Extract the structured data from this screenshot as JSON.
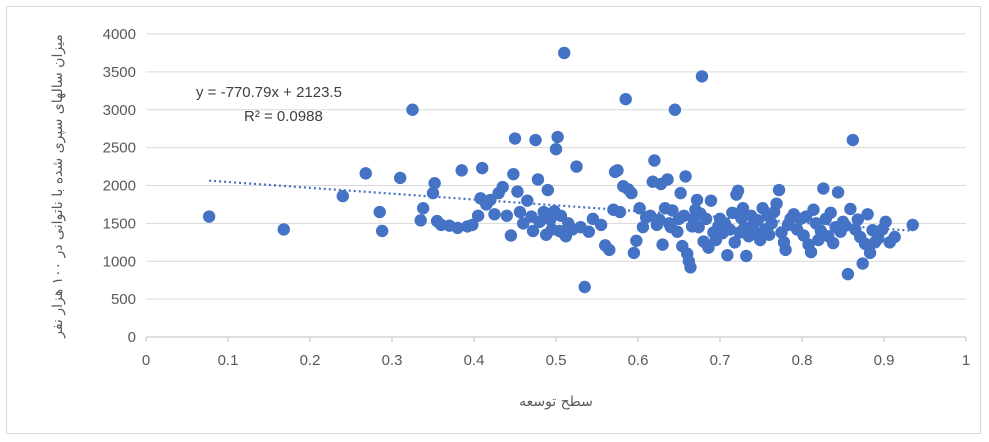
{
  "chart_data": {
    "type": "scatter",
    "title": "",
    "xlabel": "سطح توسعه",
    "ylabel": "میزان سالهای سپری شده با ناتوانی در ۱۰۰ هزار نفر",
    "xlim": [
      0,
      1
    ],
    "ylim": [
      0,
      4000
    ],
    "x_ticks": [
      "0",
      "0.1",
      "0.2",
      "0.3",
      "0.4",
      "0.5",
      "0.6",
      "0.7",
      "0.8",
      "0.9",
      "1"
    ],
    "y_ticks": [
      "0",
      "500",
      "1000",
      "1500",
      "2000",
      "2500",
      "3000",
      "3500",
      "4000"
    ],
    "grid": "horizontal",
    "marker_color": "#4472c4",
    "trendline": {
      "type": "linear",
      "slope": -770.79,
      "intercept": 2123.5,
      "x_range": [
        0.077,
        0.935
      ],
      "equation": "y = -770.79x + 2123.5",
      "r_squared": "R² = 0.0988",
      "color": "#4472c4",
      "style": "dotted"
    },
    "points": [
      [
        0.077,
        1590
      ],
      [
        0.168,
        1420
      ],
      [
        0.24,
        1860
      ],
      [
        0.268,
        2160
      ],
      [
        0.285,
        1650
      ],
      [
        0.288,
        1400
      ],
      [
        0.31,
        2100
      ],
      [
        0.325,
        3000
      ],
      [
        0.335,
        1540
      ],
      [
        0.338,
        1700
      ],
      [
        0.35,
        1900
      ],
      [
        0.352,
        2030
      ],
      [
        0.355,
        1530
      ],
      [
        0.36,
        1480
      ],
      [
        0.37,
        1470
      ],
      [
        0.38,
        1440
      ],
      [
        0.385,
        2200
      ],
      [
        0.392,
        1460
      ],
      [
        0.398,
        1480
      ],
      [
        0.405,
        1600
      ],
      [
        0.408,
        1830
      ],
      [
        0.41,
        2230
      ],
      [
        0.415,
        1750
      ],
      [
        0.42,
        1810
      ],
      [
        0.425,
        1620
      ],
      [
        0.43,
        1900
      ],
      [
        0.435,
        1980
      ],
      [
        0.44,
        1600
      ],
      [
        0.445,
        1340
      ],
      [
        0.448,
        2150
      ],
      [
        0.45,
        2620
      ],
      [
        0.453,
        1920
      ],
      [
        0.456,
        1650
      ],
      [
        0.46,
        1500
      ],
      [
        0.465,
        1800
      ],
      [
        0.47,
        1590
      ],
      [
        0.472,
        1400
      ],
      [
        0.475,
        2600
      ],
      [
        0.478,
        2080
      ],
      [
        0.48,
        1520
      ],
      [
        0.485,
        1650
      ],
      [
        0.488,
        1350
      ],
      [
        0.49,
        1940
      ],
      [
        0.493,
        1550
      ],
      [
        0.495,
        1420
      ],
      [
        0.498,
        1660
      ],
      [
        0.5,
        2480
      ],
      [
        0.502,
        2640
      ],
      [
        0.504,
        1400
      ],
      [
        0.506,
        1600
      ],
      [
        0.508,
        1380
      ],
      [
        0.51,
        3750
      ],
      [
        0.512,
        1330
      ],
      [
        0.515,
        1500
      ],
      [
        0.52,
        1420
      ],
      [
        0.525,
        2250
      ],
      [
        0.53,
        1450
      ],
      [
        0.535,
        660
      ],
      [
        0.54,
        1390
      ],
      [
        0.545,
        1560
      ],
      [
        0.555,
        1480
      ],
      [
        0.56,
        1210
      ],
      [
        0.565,
        1150
      ],
      [
        0.57,
        1680
      ],
      [
        0.572,
        2180
      ],
      [
        0.575,
        2200
      ],
      [
        0.578,
        1650
      ],
      [
        0.582,
        1990
      ],
      [
        0.585,
        3140
      ],
      [
        0.588,
        1950
      ],
      [
        0.592,
        1900
      ],
      [
        0.595,
        1110
      ],
      [
        0.598,
        1270
      ],
      [
        0.602,
        1700
      ],
      [
        0.606,
        1450
      ],
      [
        0.61,
        1580
      ],
      [
        0.615,
        1600
      ],
      [
        0.618,
        2050
      ],
      [
        0.62,
        2330
      ],
      [
        0.623,
        1480
      ],
      [
        0.626,
        1550
      ],
      [
        0.628,
        2020
      ],
      [
        0.63,
        1220
      ],
      [
        0.633,
        1700
      ],
      [
        0.636,
        2080
      ],
      [
        0.638,
        1500
      ],
      [
        0.64,
        1450
      ],
      [
        0.642,
        1670
      ],
      [
        0.645,
        3000
      ],
      [
        0.648,
        1390
      ],
      [
        0.65,
        1560
      ],
      [
        0.652,
        1900
      ],
      [
        0.654,
        1200
      ],
      [
        0.656,
        1600
      ],
      [
        0.658,
        2120
      ],
      [
        0.66,
        1100
      ],
      [
        0.662,
        1000
      ],
      [
        0.664,
        920
      ],
      [
        0.666,
        1460
      ],
      [
        0.668,
        1560
      ],
      [
        0.67,
        1680
      ],
      [
        0.672,
        1810
      ],
      [
        0.674,
        1450
      ],
      [
        0.676,
        1630
      ],
      [
        0.678,
        3440
      ],
      [
        0.68,
        1260
      ],
      [
        0.683,
        1560
      ],
      [
        0.686,
        1180
      ],
      [
        0.689,
        1800
      ],
      [
        0.692,
        1380
      ],
      [
        0.695,
        1280
      ],
      [
        0.698,
        1460
      ],
      [
        0.7,
        1560
      ],
      [
        0.703,
        1370
      ],
      [
        0.706,
        1500
      ],
      [
        0.709,
        1080
      ],
      [
        0.712,
        1420
      ],
      [
        0.715,
        1640
      ],
      [
        0.718,
        1250
      ],
      [
        0.72,
        1880
      ],
      [
        0.722,
        1930
      ],
      [
        0.724,
        1380
      ],
      [
        0.726,
        1570
      ],
      [
        0.728,
        1700
      ],
      [
        0.73,
        1450
      ],
      [
        0.732,
        1070
      ],
      [
        0.735,
        1330
      ],
      [
        0.738,
        1600
      ],
      [
        0.74,
        1470
      ],
      [
        0.743,
        1380
      ],
      [
        0.746,
        1540
      ],
      [
        0.749,
        1280
      ],
      [
        0.752,
        1700
      ],
      [
        0.755,
        1420
      ],
      [
        0.758,
        1600
      ],
      [
        0.76,
        1350
      ],
      [
        0.763,
        1500
      ],
      [
        0.766,
        1650
      ],
      [
        0.769,
        1760
      ],
      [
        0.772,
        1940
      ],
      [
        0.775,
        1380
      ],
      [
        0.778,
        1250
      ],
      [
        0.78,
        1150
      ],
      [
        0.783,
        1480
      ],
      [
        0.786,
        1560
      ],
      [
        0.79,
        1620
      ],
      [
        0.794,
        1420
      ],
      [
        0.798,
        1560
      ],
      [
        0.802,
        1340
      ],
      [
        0.805,
        1590
      ],
      [
        0.808,
        1220
      ],
      [
        0.811,
        1120
      ],
      [
        0.814,
        1680
      ],
      [
        0.817,
        1500
      ],
      [
        0.82,
        1280
      ],
      [
        0.823,
        1400
      ],
      [
        0.826,
        1960
      ],
      [
        0.829,
        1560
      ],
      [
        0.832,
        1330
      ],
      [
        0.835,
        1640
      ],
      [
        0.838,
        1240
      ],
      [
        0.841,
        1450
      ],
      [
        0.844,
        1910
      ],
      [
        0.847,
        1390
      ],
      [
        0.85,
        1520
      ],
      [
        0.853,
        1470
      ],
      [
        0.856,
        830
      ],
      [
        0.859,
        1690
      ],
      [
        0.862,
        2600
      ],
      [
        0.865,
        1420
      ],
      [
        0.868,
        1550
      ],
      [
        0.871,
        1320
      ],
      [
        0.874,
        970
      ],
      [
        0.877,
        1230
      ],
      [
        0.88,
        1620
      ],
      [
        0.883,
        1110
      ],
      [
        0.886,
        1410
      ],
      [
        0.889,
        1250
      ],
      [
        0.893,
        1300
      ],
      [
        0.898,
        1420
      ],
      [
        0.902,
        1520
      ],
      [
        0.907,
        1250
      ],
      [
        0.913,
        1320
      ],
      [
        0.935,
        1480
      ]
    ]
  }
}
